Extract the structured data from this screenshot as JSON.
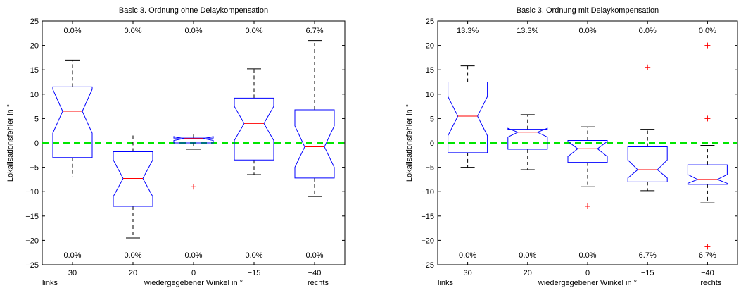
{
  "chart_data": [
    {
      "type": "box",
      "title": "Basic 3. Ordnung ohne Delaykompensation",
      "xlabel": "wiedergegebener Winkel in °",
      "ylabel": "Lokalisationsfehler in °",
      "x_left_note": "links",
      "x_right_note": "rechts",
      "ylim": [
        -25,
        25
      ],
      "yticks": [
        25,
        20,
        15,
        10,
        5,
        0,
        -5,
        -10,
        -15,
        -20,
        -25
      ],
      "ytick_labels": [
        "25",
        "20",
        "15",
        "10",
        "5",
        "0",
        "−5",
        "−10",
        "−15",
        "−20",
        "−25"
      ],
      "categories": [
        "30",
        "20",
        "0",
        "−15",
        "−40"
      ],
      "top_percent": [
        "0.0%",
        "0.0%",
        "0.0%",
        "0.0%",
        "6.7%"
      ],
      "bottom_percent": [
        "0.0%",
        "0.0%",
        "0.0%",
        "0.0%",
        "0.0%"
      ],
      "reference_line": 0,
      "boxes": [
        {
          "whisker_low": -7,
          "q1": -3,
          "median": 6.5,
          "q3": 11.5,
          "whisker_high": 17,
          "notch_low": 2,
          "notch_high": 11,
          "outliers": []
        },
        {
          "whisker_low": -19.5,
          "q1": -13,
          "median": -7.3,
          "q3": -1.8,
          "whisker_high": 1.8,
          "notch_low": -11,
          "notch_high": -3.5,
          "outliers": []
        },
        {
          "whisker_low": -1.3,
          "q1": 0,
          "median": 0.9,
          "q3": 1.0,
          "whisker_high": 1.8,
          "notch_low": 0.5,
          "notch_high": 1.3,
          "outliers": [
            -9
          ]
        },
        {
          "whisker_low": -6.5,
          "q1": -3.5,
          "median": 4,
          "q3": 9.2,
          "whisker_high": 15.2,
          "notch_low": 0.5,
          "notch_high": 7.5,
          "outliers": []
        },
        {
          "whisker_low": -11,
          "q1": -7.2,
          "median": -0.8,
          "q3": 6.8,
          "whisker_high": 21,
          "notch_low": -5,
          "notch_high": 3.5,
          "outliers": []
        }
      ],
      "colors": {
        "box": "#0000ff",
        "median": "#ff0000",
        "whisker": "#000000",
        "outlier": "#ff0000",
        "reference": "#00e600"
      }
    },
    {
      "type": "box",
      "title": "Basic 3. Ordnung mit Delaykompensation",
      "xlabel": "wiedergegebener Winkel in °",
      "ylabel": "Lokalisationsfehler in °",
      "x_left_note": "links",
      "x_right_note": "rechts",
      "ylim": [
        -25,
        25
      ],
      "yticks": [
        25,
        20,
        15,
        10,
        5,
        0,
        -5,
        -10,
        -15,
        -20,
        -25
      ],
      "ytick_labels": [
        "25",
        "20",
        "15",
        "10",
        "5",
        "0",
        "−5",
        "−10",
        "−15",
        "−20",
        "−25"
      ],
      "categories": [
        "30",
        "20",
        "0",
        "−15",
        "−40"
      ],
      "top_percent": [
        "13.3%",
        "13.3%",
        "0.0%",
        "0.0%",
        "0.0%"
      ],
      "bottom_percent": [
        "0.0%",
        "0.0%",
        "0.0%",
        "6.7%",
        "6.7%"
      ],
      "reference_line": 0,
      "boxes": [
        {
          "whisker_low": -5,
          "q1": -2,
          "median": 5.5,
          "q3": 12.5,
          "whisker_high": 15.8,
          "notch_low": 1.5,
          "notch_high": 9.5,
          "outliers": []
        },
        {
          "whisker_low": -5.5,
          "q1": -1.3,
          "median": 2.2,
          "q3": 2.8,
          "whisker_high": 5.8,
          "notch_low": 1.2,
          "notch_high": 3.0,
          "outliers": []
        },
        {
          "whisker_low": -9,
          "q1": -4,
          "median": -1.2,
          "q3": 0.5,
          "whisker_high": 3.3,
          "notch_low": -2.8,
          "notch_high": 0.3,
          "outliers": [
            -13
          ]
        },
        {
          "whisker_low": -9.8,
          "q1": -8,
          "median": -5.5,
          "q3": -0.8,
          "whisker_high": 2.8,
          "notch_low": -7.2,
          "notch_high": -3.5,
          "outliers": [
            15.5
          ]
        },
        {
          "whisker_low": -12.3,
          "q1": -8.5,
          "median": -7.5,
          "q3": -4.5,
          "whisker_high": -0.5,
          "notch_low": -8.3,
          "notch_high": -6.5,
          "outliers": [
            20,
            5,
            -21.3
          ]
        }
      ],
      "colors": {
        "box": "#0000ff",
        "median": "#ff0000",
        "whisker": "#000000",
        "outlier": "#ff0000",
        "reference": "#00e600"
      }
    }
  ]
}
